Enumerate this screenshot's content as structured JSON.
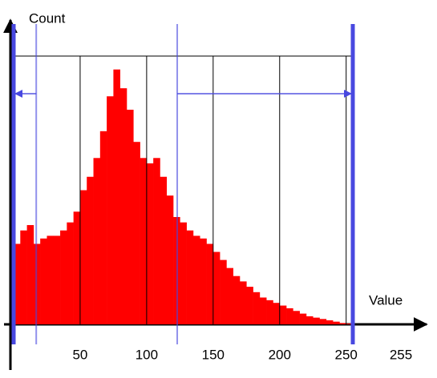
{
  "chart_data": {
    "type": "histogram",
    "y_label": "Count",
    "x_label": "Value",
    "x_end_label": "255",
    "bins": [
      0,
      5,
      10,
      15,
      20,
      25,
      30,
      35,
      40,
      45,
      50,
      55,
      60,
      65,
      70,
      75,
      80,
      85,
      90,
      95,
      100,
      105,
      110,
      115,
      120,
      125,
      130,
      135,
      140,
      145,
      150,
      155,
      160,
      165,
      170,
      175,
      180,
      185,
      190,
      195,
      200,
      205,
      210,
      215,
      220,
      225,
      230,
      235,
      240,
      245,
      250,
      255
    ],
    "values": [
      30,
      35,
      37,
      30,
      32,
      33,
      33,
      35,
      38,
      42,
      50,
      55,
      62,
      72,
      85,
      95,
      88,
      80,
      68,
      62,
      60,
      62,
      55,
      48,
      40,
      38,
      35,
      33,
      32,
      30,
      27,
      24,
      21,
      18,
      16,
      14,
      12,
      10,
      9,
      8,
      7,
      6,
      5,
      4,
      3,
      2.5,
      2,
      1.5,
      1,
      0.5,
      0.3
    ],
    "color": "#ff0000",
    "xlim": [
      0,
      255
    ],
    "ylim": [
      0,
      100
    ],
    "xticks": [
      50,
      100,
      150,
      200,
      250
    ],
    "grid": true,
    "markers": [
      0,
      17,
      123,
      255
    ],
    "marker_color": "#4848e0"
  }
}
